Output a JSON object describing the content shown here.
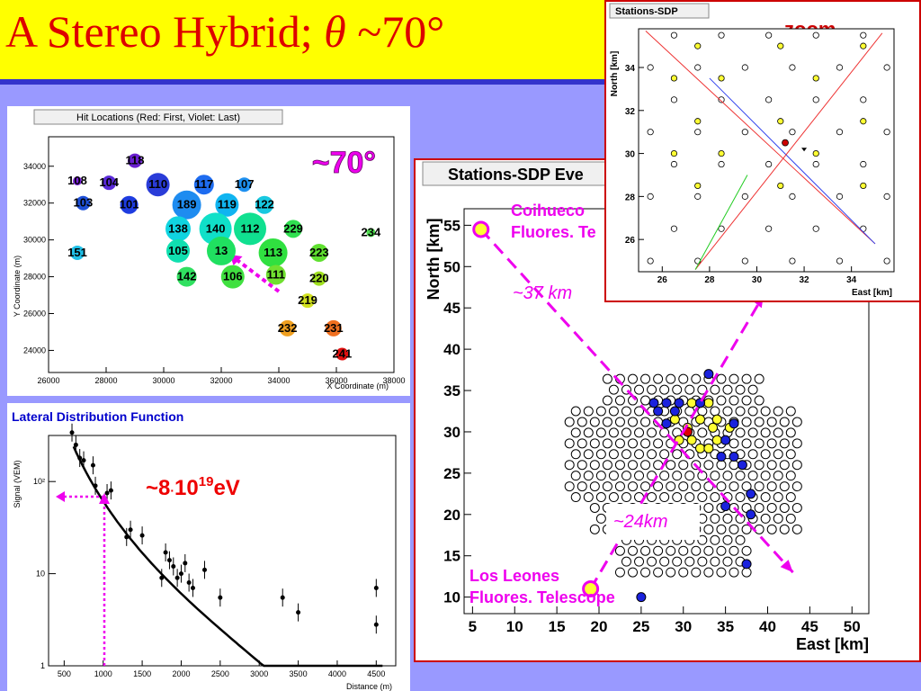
{
  "title": {
    "prefix": "A Stereo Hybrid; ",
    "theta": "θ",
    "suffix": " ~70°"
  },
  "hit_locations": {
    "header": "Hit Locations  (Red: First,  Violet: Last)",
    "xlabel": "X Coordinate (m)",
    "ylabel": "Y Coordinate (m)",
    "x_ticks": [
      "26000",
      "28000",
      "30000",
      "32000",
      "34000",
      "36000",
      "38000"
    ],
    "y_ticks": [
      "24000",
      "26000",
      "28000",
      "30000",
      "32000",
      "34000"
    ],
    "annotation": "~70°",
    "stations": [
      {
        "id": "118",
        "x": 29000,
        "y": 34300,
        "r": 8,
        "c": "#6a1fd0"
      },
      {
        "id": "108",
        "x": 27000,
        "y": 33200,
        "r": 5,
        "c": "#7a22d8"
      },
      {
        "id": "104",
        "x": 28100,
        "y": 33100,
        "r": 8,
        "c": "#5a2ad8"
      },
      {
        "id": "110",
        "x": 29800,
        "y": 33000,
        "r": 13,
        "c": "#2a3cd8"
      },
      {
        "id": "117",
        "x": 31400,
        "y": 33000,
        "r": 11,
        "c": "#1e6cf0"
      },
      {
        "id": "107",
        "x": 32800,
        "y": 33000,
        "r": 8,
        "c": "#1e90f0"
      },
      {
        "id": "103",
        "x": 27200,
        "y": 32000,
        "r": 8,
        "c": "#1e50d8"
      },
      {
        "id": "101",
        "x": 28800,
        "y": 31900,
        "r": 10,
        "c": "#1e3ce0"
      },
      {
        "id": "189",
        "x": 30800,
        "y": 31900,
        "r": 16,
        "c": "#1e8cf0"
      },
      {
        "id": "119",
        "x": 32200,
        "y": 31900,
        "r": 13,
        "c": "#10b4f0"
      },
      {
        "id": "122",
        "x": 33500,
        "y": 31900,
        "r": 10,
        "c": "#18c8e0"
      },
      {
        "id": "138",
        "x": 30500,
        "y": 30600,
        "r": 14,
        "c": "#10d4e0"
      },
      {
        "id": "140",
        "x": 31800,
        "y": 30600,
        "r": 18,
        "c": "#10e0c8"
      },
      {
        "id": "112",
        "x": 33000,
        "y": 30600,
        "r": 18,
        "c": "#10e090"
      },
      {
        "id": "229",
        "x": 34500,
        "y": 30600,
        "r": 10,
        "c": "#30e050"
      },
      {
        "id": "234",
        "x": 37200,
        "y": 30400,
        "r": 5,
        "c": "#50e050"
      },
      {
        "id": "151",
        "x": 27000,
        "y": 29300,
        "r": 8,
        "c": "#20c0e8"
      },
      {
        "id": "105",
        "x": 30500,
        "y": 29400,
        "r": 13,
        "c": "#10e0b0"
      },
      {
        "id": "13",
        "x": 32000,
        "y": 29400,
        "r": 16,
        "c": "#20e060"
      },
      {
        "id": "113",
        "x": 33800,
        "y": 29300,
        "r": 16,
        "c": "#30e040"
      },
      {
        "id": "223",
        "x": 35400,
        "y": 29300,
        "r": 10,
        "c": "#60e030"
      },
      {
        "id": "142",
        "x": 30800,
        "y": 28000,
        "r": 11,
        "c": "#30e060"
      },
      {
        "id": "106",
        "x": 32400,
        "y": 28000,
        "r": 13,
        "c": "#40e040"
      },
      {
        "id": "111",
        "x": 33900,
        "y": 28100,
        "r": 11,
        "c": "#70e030"
      },
      {
        "id": "220",
        "x": 35400,
        "y": 27900,
        "r": 8,
        "c": "#a0e020"
      },
      {
        "id": "219",
        "x": 35000,
        "y": 26700,
        "r": 8,
        "c": "#d0e020"
      },
      {
        "id": "232",
        "x": 34300,
        "y": 25200,
        "r": 9,
        "c": "#f0a020"
      },
      {
        "id": "231",
        "x": 35900,
        "y": 25200,
        "r": 9,
        "c": "#f07020"
      },
      {
        "id": "241",
        "x": 36200,
        "y": 23800,
        "r": 7,
        "c": "#e01010"
      }
    ]
  },
  "ldf": {
    "header": "Lateral Distribution Function",
    "xlabel": "Distance (m)",
    "ylabel": "Signal (VEM)",
    "x_ticks": [
      "500",
      "1000",
      "1500",
      "2000",
      "2500",
      "3000",
      "3500",
      "4000",
      "4500"
    ],
    "y_ticks": [
      "1",
      "10",
      "10²"
    ],
    "energy": {
      "base": "~8",
      "dot": "·",
      "mantissa": "10",
      "exp": "19",
      "unit": "eV"
    },
    "points": [
      {
        "x": 600,
        "y": 340
      },
      {
        "x": 650,
        "y": 250
      },
      {
        "x": 700,
        "y": 180
      },
      {
        "x": 750,
        "y": 170
      },
      {
        "x": 870,
        "y": 150
      },
      {
        "x": 900,
        "y": 90
      },
      {
        "x": 1050,
        "y": 75
      },
      {
        "x": 1100,
        "y": 80
      },
      {
        "x": 1300,
        "y": 25
      },
      {
        "x": 1350,
        "y": 30
      },
      {
        "x": 1500,
        "y": 26
      },
      {
        "x": 1750,
        "y": 9
      },
      {
        "x": 1800,
        "y": 17
      },
      {
        "x": 1850,
        "y": 14
      },
      {
        "x": 1900,
        "y": 12
      },
      {
        "x": 1950,
        "y": 9
      },
      {
        "x": 2000,
        "y": 10
      },
      {
        "x": 2050,
        "y": 13
      },
      {
        "x": 2100,
        "y": 8
      },
      {
        "x": 2150,
        "y": 7
      },
      {
        "x": 2300,
        "y": 11
      },
      {
        "x": 2500,
        "y": 5.5
      },
      {
        "x": 3300,
        "y": 5.5
      },
      {
        "x": 3500,
        "y": 3.8
      },
      {
        "x": 4500,
        "y": 7
      },
      {
        "x": 4500,
        "y": 2.8
      }
    ]
  },
  "sdp_main": {
    "header": "Stations-SDP Eve",
    "xlabel": "East  [km]",
    "ylabel": "North  [km]",
    "x_ticks": [
      "5",
      "10",
      "15",
      "20",
      "25",
      "30",
      "35",
      "40",
      "45",
      "50"
    ],
    "y_ticks": [
      "10",
      "15",
      "20",
      "25",
      "30",
      "35",
      "40",
      "45",
      "50",
      "55"
    ],
    "coihueco_l1": "Coihueco",
    "coihueco_l2": "Fluores. Te",
    "leones_l1": "Los Leones",
    "leones_l2": "Fluores. Telescope",
    "dist_37": "~37 km",
    "dist_24": "~24km",
    "blue_stations": [
      [
        33,
        37
      ],
      [
        26.5,
        33.5
      ],
      [
        28,
        33.5
      ],
      [
        29.5,
        33.5
      ],
      [
        32,
        33.5
      ],
      [
        27,
        32.5
      ],
      [
        29,
        32.5
      ],
      [
        28,
        31
      ],
      [
        36,
        31
      ],
      [
        35,
        29
      ],
      [
        34.5,
        27
      ],
      [
        36,
        27
      ],
      [
        37,
        26
      ],
      [
        38,
        22.5
      ],
      [
        35,
        21
      ],
      [
        38,
        20
      ],
      [
        37.5,
        14
      ],
      [
        25,
        10
      ]
    ],
    "yellow_stations": [
      [
        31,
        33.5
      ],
      [
        33,
        33.5
      ],
      [
        29,
        31.5
      ],
      [
        32,
        31.5
      ],
      [
        34,
        31.5
      ],
      [
        30.5,
        30.5
      ],
      [
        33.5,
        30.5
      ],
      [
        35.5,
        30.5
      ],
      [
        29.5,
        29
      ],
      [
        31,
        29
      ],
      [
        34,
        29
      ],
      [
        32,
        28
      ],
      [
        33,
        28
      ]
    ]
  },
  "sdp_zoom": {
    "header": "Stations-SDP",
    "zoom_label": "…zoom",
    "xlabel": "East  [km]",
    "ylabel": "North  [km]",
    "x_ticks": [
      "26",
      "28",
      "30",
      "32",
      "34"
    ],
    "y_ticks": [
      "26",
      "28",
      "30",
      "32",
      "34"
    ],
    "yellow_stations": [
      [
        27.5,
        35
      ],
      [
        31,
        35
      ],
      [
        34.5,
        35
      ],
      [
        26.5,
        33.5
      ],
      [
        28.5,
        33.5
      ],
      [
        32.5,
        33.5
      ],
      [
        27.5,
        31.5
      ],
      [
        31,
        31.5
      ],
      [
        34.5,
        31.5
      ],
      [
        26.5,
        30
      ],
      [
        28.5,
        30
      ],
      [
        32.5,
        30
      ],
      [
        27.5,
        28.5
      ],
      [
        31,
        28.5
      ],
      [
        34.5,
        28.5
      ]
    ]
  },
  "colors": {
    "title_bg": "#ffff00",
    "title_fg": "#dd0000",
    "slide_bg": "#9999ff",
    "accent": "#ee00ee"
  }
}
